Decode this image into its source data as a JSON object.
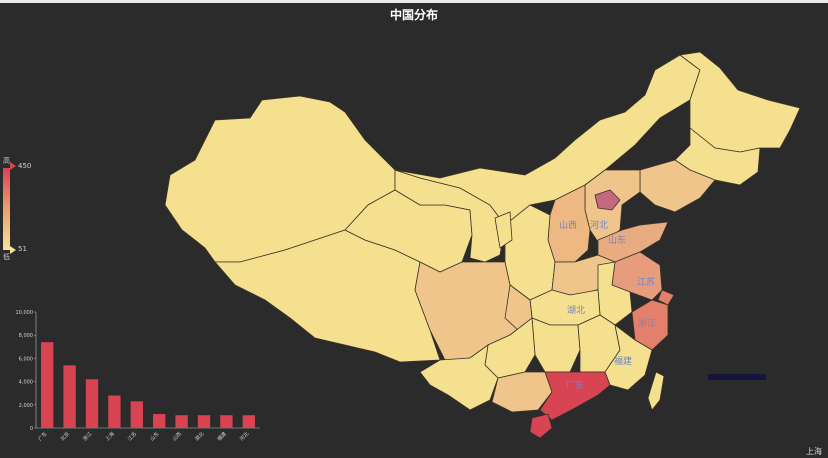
{
  "title": "中国分布",
  "legend": {
    "high_label": "高",
    "low_label": "低",
    "max": "450",
    "min": "51",
    "colors": [
      "#d94453",
      "#e8a070",
      "#f7e29a"
    ]
  },
  "map": {
    "province_labels": [
      "山西",
      "河北",
      "山东",
      "江苏",
      "浙江",
      "湖北",
      "福建",
      "广东"
    ]
  },
  "chart_data": {
    "type": "bar",
    "categories": [
      "广东",
      "北京",
      "浙江",
      "上海",
      "江苏",
      "山东",
      "山西",
      "湖北",
      "福建",
      "河北"
    ],
    "values": [
      7400,
      5400,
      4200,
      2800,
      2300,
      1200,
      1100,
      1100,
      1100,
      1100
    ],
    "ytick_labels": [
      "0",
      "2,000",
      "4,000",
      "6,000",
      "8,000",
      "10,000"
    ],
    "ylim": [
      0,
      10000
    ],
    "color": "#d94453"
  },
  "corner_text": "上海"
}
